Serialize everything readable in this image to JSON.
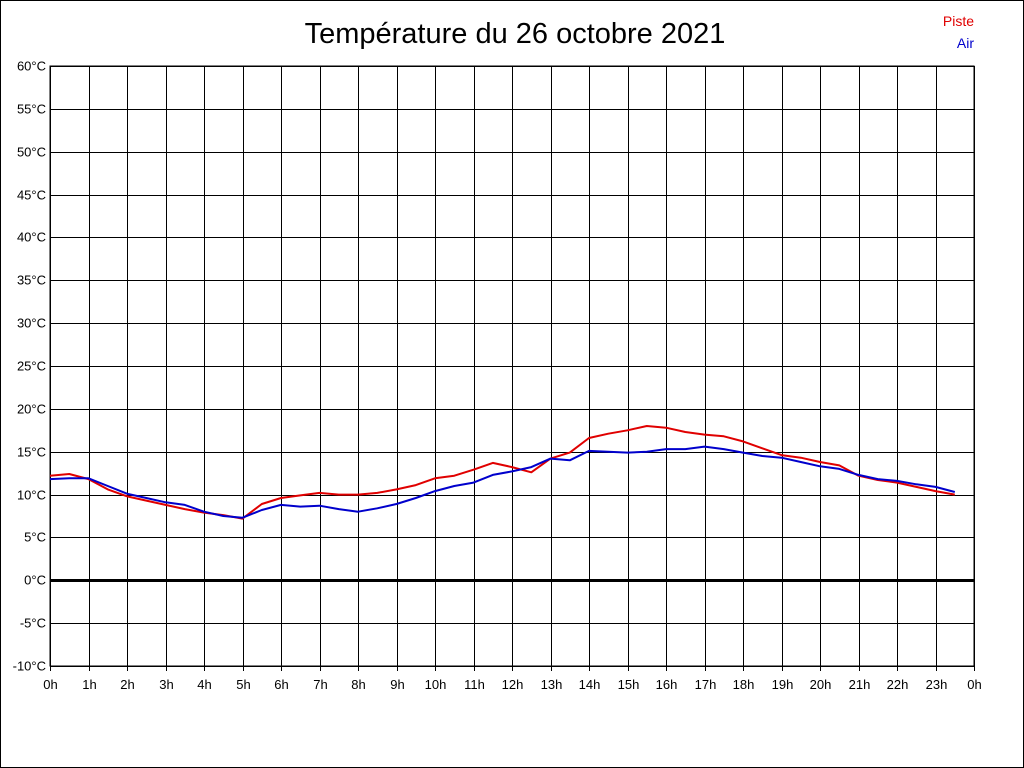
{
  "chart_data": {
    "type": "line",
    "title": "Température du 26 octobre 2021",
    "xlabel": "",
    "ylabel": "",
    "x_range": [
      0,
      24
    ],
    "ylim": [
      -10,
      60
    ],
    "grid": true,
    "legend_position": "top-right",
    "y_ticks": [
      "-10°C",
      "-5°C",
      "0°C",
      "5°C",
      "10°C",
      "15°C",
      "20°C",
      "25°C",
      "30°C",
      "35°C",
      "40°C",
      "45°C",
      "50°C",
      "55°C",
      "60°C"
    ],
    "x_ticks": [
      "0h",
      "1h",
      "2h",
      "3h",
      "4h",
      "5h",
      "6h",
      "7h",
      "8h",
      "9h",
      "10h",
      "11h",
      "12h",
      "13h",
      "14h",
      "15h",
      "16h",
      "17h",
      "18h",
      "19h",
      "20h",
      "21h",
      "22h",
      "23h",
      "0h"
    ],
    "x": [
      0,
      0.5,
      1,
      1.5,
      2,
      2.5,
      3,
      3.5,
      4,
      4.5,
      5,
      5.5,
      6,
      6.5,
      7,
      7.5,
      8,
      8.5,
      9,
      9.5,
      10,
      10.5,
      11,
      11.5,
      12,
      12.5,
      13,
      13.5,
      14,
      14.5,
      15,
      15.5,
      16,
      16.5,
      17,
      17.5,
      18,
      18.5,
      19,
      19.5,
      20,
      20.5,
      21,
      21.5,
      22,
      22.5,
      23,
      23.5
    ],
    "series": [
      {
        "name": "Piste",
        "color": "#e00000",
        "values": [
          12.2,
          12.4,
          11.8,
          10.6,
          9.8,
          9.3,
          8.8,
          8.3,
          7.9,
          7.6,
          7.2,
          8.9,
          9.6,
          9.9,
          10.2,
          10.0,
          10.0,
          10.2,
          10.6,
          11.1,
          11.9,
          12.2,
          12.9,
          13.7,
          13.2,
          12.6,
          14.2,
          14.9,
          16.6,
          17.1,
          17.5,
          18.0,
          17.8,
          17.3,
          17.0,
          16.8,
          16.2,
          15.4,
          14.6,
          14.3,
          13.8,
          13.4,
          12.2,
          11.7,
          11.4,
          10.9,
          10.4,
          10.0
        ]
      },
      {
        "name": "Air",
        "color": "#0000cc",
        "values": [
          11.8,
          11.9,
          11.9,
          11.0,
          10.1,
          9.6,
          9.1,
          8.8,
          8.0,
          7.5,
          7.3,
          8.2,
          8.8,
          8.6,
          8.7,
          8.3,
          8.0,
          8.4,
          8.9,
          9.6,
          10.4,
          11.0,
          11.4,
          12.3,
          12.7,
          13.2,
          14.2,
          14.0,
          15.1,
          15.0,
          14.9,
          15.0,
          15.3,
          15.3,
          15.6,
          15.3,
          14.9,
          14.5,
          14.3,
          13.8,
          13.3,
          13.0,
          12.3,
          11.8,
          11.6,
          11.2,
          10.9,
          10.3
        ]
      }
    ]
  }
}
